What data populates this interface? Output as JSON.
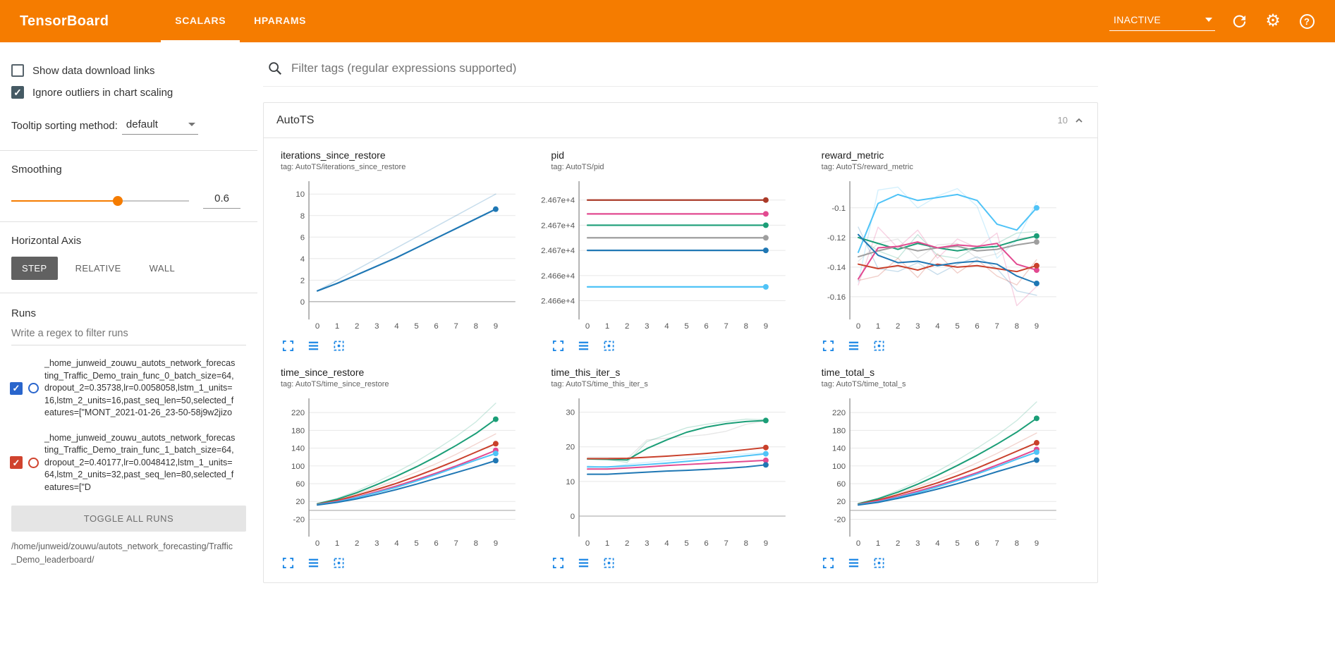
{
  "header": {
    "title": "TensorBoard",
    "tabs": [
      {
        "label": "SCALARS",
        "active": true
      },
      {
        "label": "HPARAMS",
        "active": false
      }
    ],
    "status_select": {
      "value": "INACTIVE"
    },
    "colors": {
      "bar": "#f57c00"
    }
  },
  "icons": {
    "check": "✓",
    "gear": "⚙",
    "help": "?"
  },
  "sidebar": {
    "show_download": {
      "label": "Show data download links",
      "checked": false
    },
    "ignore_outliers": {
      "label": "Ignore outliers in chart scaling",
      "checked": true
    },
    "tooltip_sorting": {
      "label": "Tooltip sorting method:",
      "value": "default"
    },
    "smoothing": {
      "label": "Smoothing",
      "value": "0.6",
      "percent_css": "60%"
    },
    "horizontal_axis": {
      "label": "Horizontal Axis",
      "options": [
        {
          "label": "STEP",
          "selected": true
        },
        {
          "label": "RELATIVE",
          "selected": false
        },
        {
          "label": "WALL",
          "selected": false
        }
      ]
    },
    "runs": {
      "label": "Runs",
      "filter_placeholder": "Write a regex to filter runs",
      "items": [
        {
          "label": "_home_junweid_zouwu_autots_network_forecasting_Traffic_Demo_train_func_0_batch_size=64,dropout_2=0.35738,lr=0.0058058,lstm_1_units=16,lstm_2_units=16,past_seq_len=50,selected_features=[\"MONT_2021-01-26_23-50-58j9w2jizo",
          "checked": true,
          "color": "#2965cc"
        },
        {
          "label": "_home_junweid_zouwu_autots_network_forecasting_Traffic_Demo_train_func_1_batch_size=64,dropout_2=0.40177,lr=0.0048412,lstm_1_units=64,lstm_2_units=32,past_seq_len=80,selected_features=[\"D",
          "checked": true,
          "color": "#d0432e"
        }
      ],
      "toggle_all_label": "TOGGLE ALL RUNS",
      "path": "/home/junweid/zouwu/autots_network_forecasting/Traffic_Demo_leaderboard/"
    }
  },
  "main": {
    "filter_placeholder": "Filter tags (regular expressions supported)",
    "section": {
      "title": "AutoTS",
      "count": "10"
    }
  },
  "chart_data": [
    {
      "type": "line",
      "title": "iterations_since_restore",
      "tag": "tag: AutoTS/iterations_since_restore",
      "x": [
        0,
        1,
        2,
        3,
        4,
        5,
        6,
        7,
        8,
        9
      ],
      "ylim": [
        -1.2,
        11.2
      ],
      "yticks": [
        0,
        2,
        4,
        6,
        8,
        10
      ],
      "ytick_labels": [
        "0",
        "2",
        "4",
        "6",
        "8",
        "10"
      ],
      "series": [
        {
          "color": "#1f77b4",
          "opacity": 0.25,
          "width": 1.5,
          "dot": false,
          "values": [
            1,
            2,
            3,
            4,
            5,
            6,
            7,
            8,
            9,
            10
          ]
        },
        {
          "color": "#1f77b4",
          "opacity": 1,
          "width": 2.2,
          "dot": true,
          "values": [
            1,
            1.7,
            2.5,
            3.3,
            4.1,
            5,
            5.9,
            6.8,
            7.7,
            8.6
          ]
        }
      ]
    },
    {
      "type": "line",
      "title": "pid",
      "tag": "tag: AutoTS/pid",
      "x": [
        0,
        1,
        2,
        3,
        4,
        5,
        6,
        7,
        8,
        9
      ],
      "ylim": [
        0.45,
        5.75
      ],
      "yticks": [
        5,
        4,
        3,
        2,
        1
      ],
      "ytick_labels": [
        "2.467e+4",
        "2.467e+4",
        "2.467e+4",
        "2.466e+4",
        "2.466e+4"
      ],
      "series": [
        {
          "color": "#aa3a28",
          "opacity": 1,
          "width": 2.2,
          "dot": true,
          "values": [
            5,
            5,
            5,
            5,
            5,
            5,
            5,
            5,
            5,
            5
          ]
        },
        {
          "color": "#e24a90",
          "opacity": 1,
          "width": 2.2,
          "dot": true,
          "values": [
            4.45,
            4.45,
            4.45,
            4.45,
            4.45,
            4.45,
            4.45,
            4.45,
            4.45,
            4.45
          ]
        },
        {
          "color": "#1b9e77",
          "opacity": 1,
          "width": 2.2,
          "dot": true,
          "values": [
            4,
            4,
            4,
            4,
            4,
            4,
            4,
            4,
            4,
            4
          ]
        },
        {
          "color": "#9e9e9e",
          "opacity": 1,
          "width": 2.2,
          "dot": true,
          "values": [
            3.5,
            3.5,
            3.5,
            3.5,
            3.5,
            3.5,
            3.5,
            3.5,
            3.5,
            3.5
          ]
        },
        {
          "color": "#1f77b4",
          "opacity": 1,
          "width": 2.2,
          "dot": true,
          "values": [
            3,
            3,
            3,
            3,
            3,
            3,
            3,
            3,
            3,
            3
          ]
        },
        {
          "color": "#4fc3f7",
          "opacity": 1,
          "width": 2.2,
          "dot": true,
          "values": [
            1.55,
            1.55,
            1.55,
            1.55,
            1.55,
            1.55,
            1.55,
            1.55,
            1.55,
            1.55
          ]
        }
      ]
    },
    {
      "type": "line",
      "title": "reward_metric",
      "tag": "tag: AutoTS/reward_metric",
      "x": [
        0,
        1,
        2,
        3,
        4,
        5,
        6,
        7,
        8,
        9
      ],
      "ylim": [
        -0.172,
        -0.082
      ],
      "yticks": [
        -0.1,
        -0.12,
        -0.14,
        -0.16
      ],
      "ytick_labels": [
        "-0.1",
        "-0.12",
        "-0.14",
        "-0.16"
      ],
      "series": [
        {
          "color": "#4fc3f7",
          "opacity": 0.25,
          "width": 1.4,
          "dot": false,
          "values": [
            -0.15,
            -0.088,
            -0.086,
            -0.1,
            -0.092,
            -0.087,
            -0.099,
            -0.134,
            -0.122,
            -0.096
          ]
        },
        {
          "color": "#e24a90",
          "opacity": 0.25,
          "width": 1.4,
          "dot": false,
          "values": [
            -0.152,
            -0.113,
            -0.127,
            -0.115,
            -0.134,
            -0.121,
            -0.127,
            -0.117,
            -0.166,
            -0.153
          ]
        },
        {
          "color": "#1b9e77",
          "opacity": 0.25,
          "width": 1.4,
          "dot": false,
          "values": [
            -0.12,
            -0.129,
            -0.134,
            -0.118,
            -0.132,
            -0.134,
            -0.126,
            -0.124,
            -0.117,
            -0.116
          ]
        },
        {
          "color": "#1f77b4",
          "opacity": 0.25,
          "width": 1.4,
          "dot": false,
          "values": [
            -0.113,
            -0.141,
            -0.143,
            -0.137,
            -0.145,
            -0.138,
            -0.133,
            -0.141,
            -0.156,
            -0.159
          ]
        },
        {
          "color": "#c9402b",
          "opacity": 0.25,
          "width": 1.4,
          "dot": false,
          "values": [
            -0.149,
            -0.146,
            -0.134,
            -0.147,
            -0.131,
            -0.144,
            -0.135,
            -0.146,
            -0.152,
            -0.135
          ]
        },
        {
          "color": "#9e9e9e",
          "opacity": 0.25,
          "width": 1.4,
          "dot": false,
          "values": [
            -0.136,
            -0.124,
            -0.121,
            -0.134,
            -0.125,
            -0.124,
            -0.134,
            -0.131,
            -0.121,
            -0.119
          ]
        },
        {
          "color": "#4fc3f7",
          "opacity": 1,
          "width": 2,
          "dot": true,
          "values": [
            -0.13,
            -0.097,
            -0.091,
            -0.095,
            -0.093,
            -0.091,
            -0.095,
            -0.111,
            -0.115,
            -0.1
          ]
        },
        {
          "color": "#1b9e77",
          "opacity": 1,
          "width": 2,
          "dot": true,
          "values": [
            -0.12,
            -0.124,
            -0.128,
            -0.124,
            -0.127,
            -0.129,
            -0.127,
            -0.126,
            -0.122,
            -0.119
          ]
        },
        {
          "color": "#9e9e9e",
          "opacity": 1,
          "width": 2,
          "dot": true,
          "values": [
            -0.133,
            -0.129,
            -0.126,
            -0.129,
            -0.127,
            -0.126,
            -0.129,
            -0.128,
            -0.125,
            -0.123
          ]
        },
        {
          "color": "#e24a90",
          "opacity": 1,
          "width": 2,
          "dot": true,
          "values": [
            -0.148,
            -0.127,
            -0.126,
            -0.123,
            -0.127,
            -0.125,
            -0.126,
            -0.124,
            -0.138,
            -0.142
          ]
        },
        {
          "color": "#c9402b",
          "opacity": 1,
          "width": 2,
          "dot": true,
          "values": [
            -0.138,
            -0.141,
            -0.139,
            -0.142,
            -0.138,
            -0.14,
            -0.139,
            -0.141,
            -0.143,
            -0.139
          ]
        },
        {
          "color": "#1f77b4",
          "opacity": 1,
          "width": 2,
          "dot": true,
          "values": [
            -0.118,
            -0.132,
            -0.137,
            -0.136,
            -0.139,
            -0.137,
            -0.136,
            -0.138,
            -0.146,
            -0.151
          ]
        }
      ]
    },
    {
      "type": "line",
      "title": "time_since_restore",
      "tag": "tag: AutoTS/time_since_restore",
      "x": [
        0,
        1,
        2,
        3,
        4,
        5,
        6,
        7,
        8,
        9
      ],
      "ylim": [
        -48,
        252
      ],
      "yticks": [
        -20,
        20,
        60,
        100,
        140,
        180,
        220
      ],
      "ytick_labels": [
        "-20",
        "20",
        "60",
        "100",
        "140",
        "180",
        "220"
      ],
      "series": [
        {
          "color": "#1b9e77",
          "opacity": 0.22,
          "width": 1.4,
          "dot": false,
          "values": [
            15,
            27,
            44,
            64,
            86,
            110,
            137,
            166,
            199,
            241
          ]
        },
        {
          "color": "#c9402b",
          "opacity": 0.22,
          "width": 1.4,
          "dot": false,
          "values": [
            14,
            24,
            37,
            52,
            68,
            86,
            105,
            126,
            149,
            172
          ]
        },
        {
          "color": "#e24a90",
          "opacity": 0.22,
          "width": 1.4,
          "dot": false,
          "values": [
            13,
            21,
            33,
            46,
            60,
            76,
            93,
            111,
            131,
            151
          ]
        },
        {
          "color": "#1b9e77",
          "opacity": 1,
          "width": 2,
          "dot": true,
          "values": [
            15,
            25,
            40,
            58,
            77,
            98,
            121,
            146,
            173,
            205
          ]
        },
        {
          "color": "#c9402b",
          "opacity": 1,
          "width": 2,
          "dot": true,
          "values": [
            14,
            22,
            34,
            47,
            61,
            77,
            94,
            112,
            131,
            150
          ]
        },
        {
          "color": "#e24a90",
          "opacity": 1,
          "width": 2,
          "dot": true,
          "values": [
            13,
            20,
            30,
            42,
            55,
            69,
            84,
            100,
            117,
            135
          ]
        },
        {
          "color": "#4fc3f7",
          "opacity": 1,
          "width": 2,
          "dot": true,
          "values": [
            13,
            19,
            29,
            40,
            52,
            66,
            81,
            97,
            113,
            128
          ]
        },
        {
          "color": "#1f77b4",
          "opacity": 1,
          "width": 2,
          "dot": true,
          "values": [
            12,
            18,
            26,
            36,
            47,
            59,
            72,
            85,
            98,
            112
          ]
        }
      ]
    },
    {
      "type": "line",
      "title": "time_this_iter_s",
      "tag": "tag: AutoTS/time_this_iter_s",
      "x": [
        0,
        1,
        2,
        3,
        4,
        5,
        6,
        7,
        8,
        9
      ],
      "ylim": [
        -4.5,
        34
      ],
      "yticks": [
        0,
        10,
        20,
        30
      ],
      "ytick_labels": [
        "0",
        "10",
        "20",
        "30"
      ],
      "series": [
        {
          "color": "#9e9e9e",
          "opacity": 0.25,
          "width": 1.4,
          "dot": false,
          "values": [
            17,
            17,
            16.5,
            22,
            22.5,
            23,
            23.5,
            24.5,
            26.5,
            27.5
          ]
        },
        {
          "color": "#1b9e77",
          "opacity": 0.25,
          "width": 1.4,
          "dot": false,
          "values": [
            16.5,
            16.3,
            15.5,
            21.5,
            23.5,
            25.5,
            26.5,
            27.3,
            28,
            27.8
          ]
        },
        {
          "color": "#4fc3f7",
          "opacity": 0.25,
          "width": 1.4,
          "dot": false,
          "values": [
            14.5,
            14,
            15,
            15.5,
            16,
            16.5,
            17,
            17.5,
            18,
            18.3
          ]
        },
        {
          "color": "#1b9e77",
          "opacity": 1,
          "width": 2,
          "dot": true,
          "values": [
            16.5,
            16.4,
            16.2,
            19.5,
            22,
            24.2,
            25.7,
            26.7,
            27.3,
            27.6
          ]
        },
        {
          "color": "#c9402b",
          "opacity": 1,
          "width": 2,
          "dot": true,
          "values": [
            16.6,
            16.6,
            16.7,
            17,
            17.3,
            17.7,
            18.1,
            18.6,
            19.2,
            19.8
          ]
        },
        {
          "color": "#4fc3f7",
          "opacity": 1,
          "width": 2,
          "dot": true,
          "values": [
            14.2,
            14.2,
            14.5,
            14.9,
            15.3,
            15.8,
            16.3,
            16.8,
            17.4,
            18
          ]
        },
        {
          "color": "#e24a90",
          "opacity": 1,
          "width": 2,
          "dot": true,
          "values": [
            13.6,
            13.6,
            13.9,
            14.2,
            14.6,
            14.9,
            15.2,
            15.5,
            15.8,
            16.1
          ]
        },
        {
          "color": "#1f77b4",
          "opacity": 1,
          "width": 2,
          "dot": true,
          "values": [
            12.1,
            12.1,
            12.4,
            12.7,
            13,
            13.2,
            13.5,
            13.8,
            14.2,
            14.8
          ]
        }
      ]
    },
    {
      "type": "line",
      "title": "time_total_s",
      "tag": "tag: AutoTS/time_total_s",
      "x": [
        0,
        1,
        2,
        3,
        4,
        5,
        6,
        7,
        8,
        9
      ],
      "ylim": [
        -48,
        252
      ],
      "yticks": [
        -20,
        20,
        60,
        100,
        140,
        180,
        220
      ],
      "ytick_labels": [
        "-20",
        "20",
        "60",
        "100",
        "140",
        "180",
        "220"
      ],
      "series": [
        {
          "color": "#1b9e77",
          "opacity": 0.22,
          "width": 1.4,
          "dot": false,
          "values": [
            15,
            27,
            45,
            65,
            88,
            113,
            140,
            169,
            202,
            244
          ]
        },
        {
          "color": "#c9402b",
          "opacity": 0.22,
          "width": 1.4,
          "dot": false,
          "values": [
            14,
            24,
            37,
            53,
            69,
            87,
            107,
            128,
            151,
            174
          ]
        },
        {
          "color": "#1b9e77",
          "opacity": 1,
          "width": 2,
          "dot": true,
          "values": [
            15,
            26,
            41,
            59,
            79,
            101,
            124,
            149,
            176,
            207
          ]
        },
        {
          "color": "#c9402b",
          "opacity": 1,
          "width": 2,
          "dot": true,
          "values": [
            14,
            23,
            35,
            48,
            62,
            78,
            95,
            114,
            133,
            152
          ]
        },
        {
          "color": "#e24a90",
          "opacity": 1,
          "width": 2,
          "dot": true,
          "values": [
            13,
            21,
            31,
            43,
            56,
            70,
            85,
            102,
            119,
            137
          ]
        },
        {
          "color": "#4fc3f7",
          "opacity": 1,
          "width": 2,
          "dot": true,
          "values": [
            13,
            19,
            29,
            40,
            53,
            67,
            82,
            98,
            115,
            131
          ]
        },
        {
          "color": "#1f77b4",
          "opacity": 1,
          "width": 2,
          "dot": true,
          "values": [
            12,
            18,
            27,
            37,
            48,
            60,
            73,
            87,
            100,
            113
          ]
        }
      ]
    }
  ]
}
